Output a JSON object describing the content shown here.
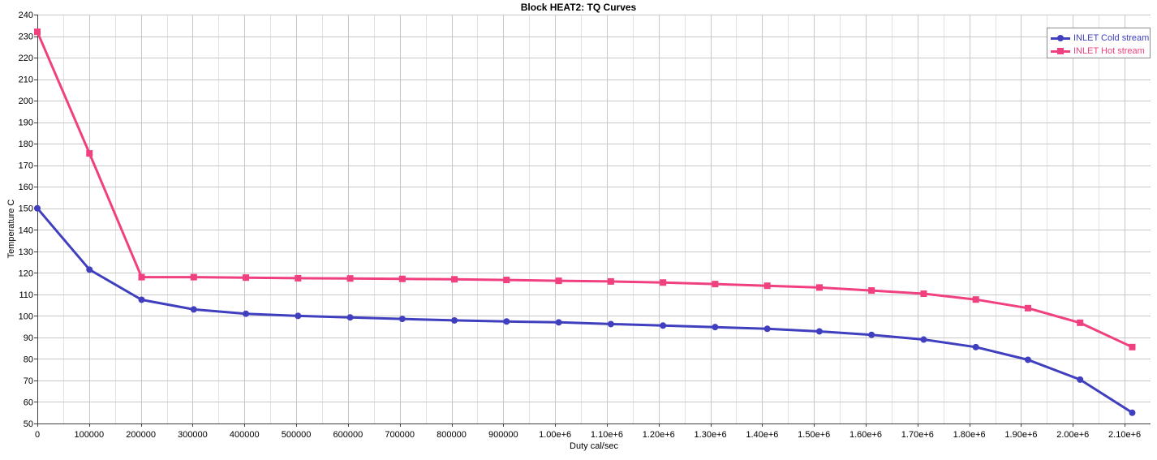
{
  "chart_data": {
    "type": "line",
    "title": "Block HEAT2: TQ Curves",
    "xlabel": "Duty cal/sec",
    "ylabel": "Temperature C",
    "xlim": [
      0,
      2150000
    ],
    "ylim": [
      50,
      240
    ],
    "x_ticks": [
      0,
      100000,
      200000,
      300000,
      400000,
      500000,
      600000,
      700000,
      800000,
      900000,
      1000000,
      1100000,
      1200000,
      1300000,
      1400000,
      1500000,
      1600000,
      1700000,
      1800000,
      1900000,
      2000000,
      2100000
    ],
    "x_tick_labels": [
      "0",
      "100000",
      "200000",
      "300000",
      "400000",
      "500000",
      "600000",
      "700000",
      "800000",
      "900000",
      "1.00e+6",
      "1.10e+6",
      "1.20e+6",
      "1.30e+6",
      "1.40e+6",
      "1.50e+6",
      "1.60e+6",
      "1.70e+6",
      "1.80e+6",
      "1.90e+6",
      "2.00e+6",
      "2.10e+6"
    ],
    "y_ticks": [
      50,
      60,
      70,
      80,
      90,
      100,
      110,
      120,
      130,
      140,
      150,
      160,
      170,
      180,
      190,
      200,
      210,
      220,
      230,
      240
    ],
    "grid": true,
    "legend_position": "top-right",
    "series": [
      {
        "name": "INLET Cold stream",
        "color": "#3f3fbf",
        "marker": "circle",
        "x": [
          0,
          100700,
          201400,
          302100,
          402800,
          503500,
          604200,
          704900,
          805600,
          906300,
          1007000,
          1107700,
          1208400,
          1309100,
          1409800,
          1510500,
          1611200,
          1711900,
          1812600,
          1913300,
          2014000,
          2114700
        ],
        "y": [
          150,
          121.5,
          107.5,
          103,
          101,
          100,
          99.3,
          98.6,
          97.9,
          97.4,
          97,
          96.2,
          95.5,
          94.8,
          94,
          92.8,
          91.2,
          89,
          85.5,
          79.6,
          70.4,
          55
        ]
      },
      {
        "name": "INLET Hot stream",
        "color": "#f0407f",
        "marker": "square",
        "x": [
          0,
          100700,
          201400,
          302100,
          402800,
          503500,
          604200,
          704900,
          805600,
          906300,
          1007000,
          1107700,
          1208400,
          1309100,
          1409800,
          1510500,
          1611200,
          1711900,
          1812600,
          1913300,
          2014000,
          2114700
        ],
        "y": [
          232,
          175.5,
          118,
          118,
          117.8,
          117.5,
          117.4,
          117.2,
          117,
          116.7,
          116.3,
          116,
          115.5,
          114.8,
          114,
          113.2,
          111.8,
          110.3,
          107.6,
          103.6,
          96.8,
          85.5
        ]
      }
    ]
  }
}
